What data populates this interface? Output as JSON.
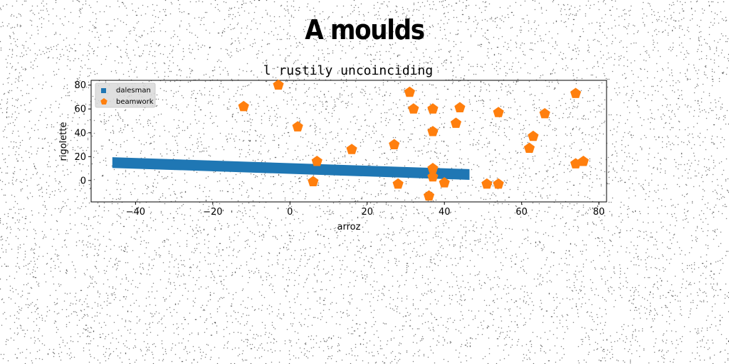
{
  "chart_data": {
    "type": "scatter",
    "title": "A moulds",
    "subtitle": "l rustily uncoinciding",
    "xlabel": "arroz",
    "ylabel": "rigolette",
    "xlim": [
      -51.5,
      82
    ],
    "ylim": [
      -18,
      84
    ],
    "xticks": [
      -40,
      -20,
      0,
      20,
      40,
      60,
      80
    ],
    "yticks": [
      0,
      20,
      40,
      60,
      80
    ],
    "legend_position": "top-left",
    "series": [
      {
        "name": "dalesman",
        "marker": "square",
        "color": "#1f77b4",
        "line_start": [
          -46,
          15
        ],
        "line_end": [
          46.5,
          5
        ],
        "band_width": 9
      },
      {
        "name": "beamwork",
        "marker": "pentagon",
        "color": "#ff7f0e",
        "points": [
          [
            -12,
            62
          ],
          [
            -3,
            80
          ],
          [
            2,
            45
          ],
          [
            7,
            16
          ],
          [
            6,
            -1
          ],
          [
            16,
            26
          ],
          [
            27,
            30
          ],
          [
            28,
            -3
          ],
          [
            31,
            74
          ],
          [
            32,
            60
          ],
          [
            36,
            -13
          ],
          [
            37,
            60
          ],
          [
            37,
            41
          ],
          [
            37,
            10
          ],
          [
            37,
            3
          ],
          [
            40,
            -2
          ],
          [
            43,
            48
          ],
          [
            44,
            61
          ],
          [
            51,
            -3
          ],
          [
            54,
            57
          ],
          [
            54,
            -3
          ],
          [
            62,
            27
          ],
          [
            63,
            37
          ],
          [
            66,
            56
          ],
          [
            74,
            73
          ],
          [
            74,
            14
          ],
          [
            76,
            16
          ]
        ]
      }
    ]
  }
}
